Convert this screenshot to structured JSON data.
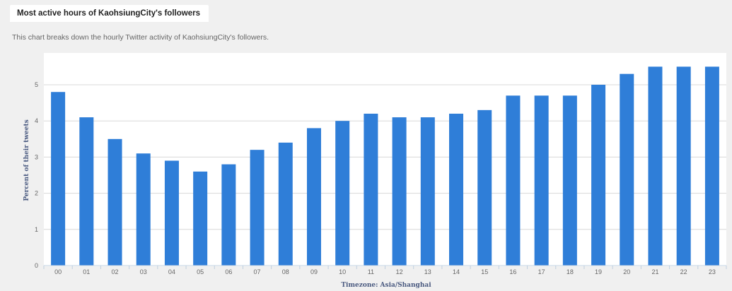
{
  "header": {
    "title": "Most active hours of KaohsiungCity's followers",
    "subtitle": "This chart breaks down the hourly Twitter activity of KaohsiungCity's followers."
  },
  "chart_data": {
    "type": "bar",
    "categories": [
      "00",
      "01",
      "02",
      "03",
      "04",
      "05",
      "06",
      "07",
      "08",
      "09",
      "10",
      "11",
      "12",
      "13",
      "14",
      "15",
      "16",
      "17",
      "18",
      "19",
      "20",
      "21",
      "22",
      "23"
    ],
    "values": [
      4.8,
      4.1,
      3.5,
      3.1,
      2.9,
      2.6,
      2.8,
      3.2,
      3.4,
      3.8,
      4.0,
      4.2,
      4.1,
      4.1,
      4.2,
      4.3,
      4.7,
      4.7,
      4.7,
      5.0,
      5.3,
      5.5,
      5.5,
      5.5
    ],
    "xlabel": "Timezone: Asia/Shanghai",
    "ylabel": "Percent of their tweets",
    "ylim": [
      0,
      5.5
    ],
    "yticks": [
      0,
      1,
      2,
      3,
      4,
      5
    ],
    "grid": true,
    "bar_color": "#2f7ed8"
  }
}
